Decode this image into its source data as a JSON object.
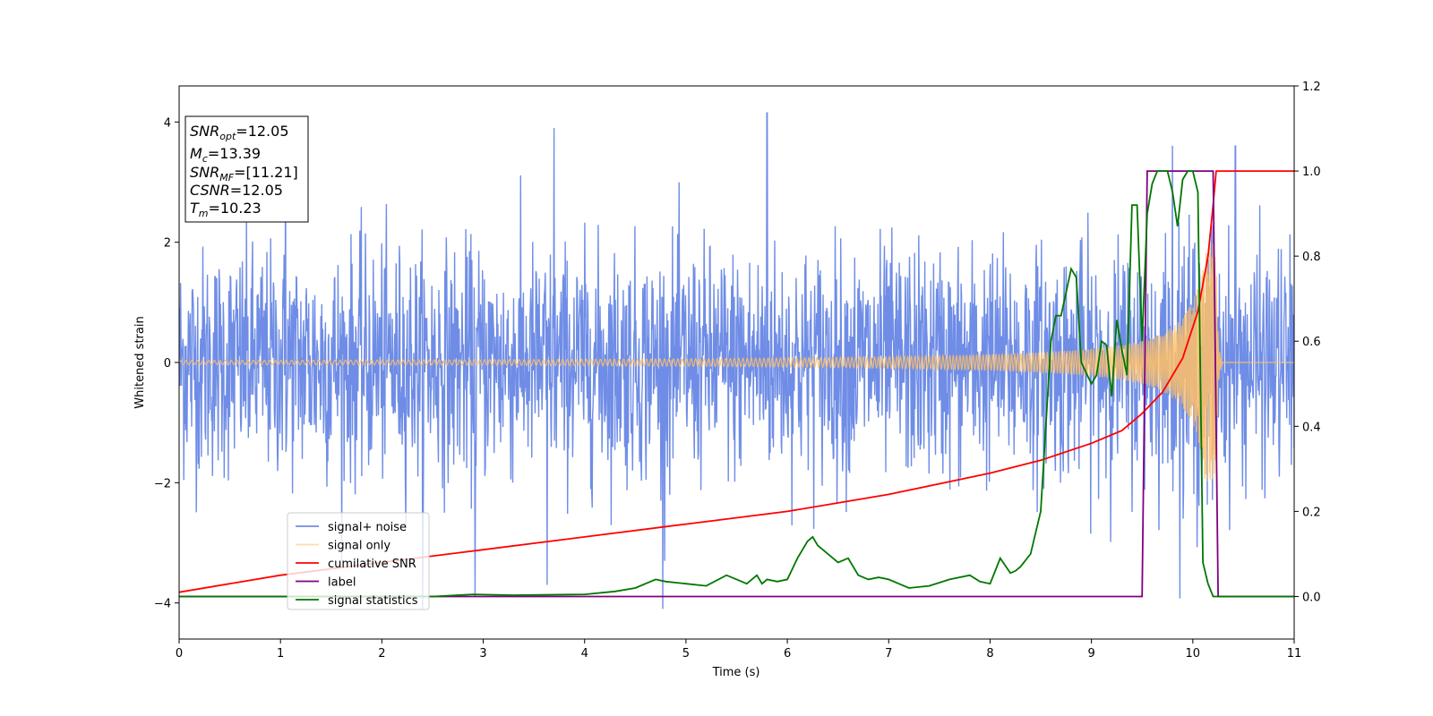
{
  "chart_data": {
    "type": "line",
    "title": "",
    "xlabel": "Time (s)",
    "ylabel": "Whitened strain",
    "xlim": [
      0,
      11
    ],
    "ylim": [
      -4.6,
      4.6
    ],
    "ylim_right": [
      -0.1,
      1.2
    ],
    "grid": false,
    "legend_position": "lower-left",
    "x_ticks": [
      "0",
      "1",
      "2",
      "3",
      "4",
      "5",
      "6",
      "7",
      "8",
      "9",
      "10",
      "11"
    ],
    "y_ticks": [
      "−4",
      "−2",
      "0",
      "2",
      "4"
    ],
    "y_ticks_right": [
      "0.0",
      "0.2",
      "0.4",
      "0.6",
      "0.8",
      "1.0",
      "1.2"
    ],
    "info_box": {
      "snr_opt": {
        "sym": "SNR",
        "sub": "opt",
        "value": "=12.05"
      },
      "mc": {
        "sym": "M",
        "sub": "c",
        "value": "=13.39"
      },
      "snr_mf": {
        "sym": "SNR",
        "sub": "MF",
        "value": "=[11.21]"
      },
      "csnr": {
        "sym": "CSNR",
        "sub": "",
        "value": "=12.05"
      },
      "tm": {
        "sym": "T",
        "sub": "m",
        "value": "=10.23"
      }
    },
    "series": [
      {
        "name": "signal+ noise",
        "axis": "left",
        "color": "#6f8de6",
        "kind": "noise",
        "std": 1.0,
        "extremes": [
          [
            1.05,
            3.9
          ],
          [
            3.7,
            3.9
          ],
          [
            5.8,
            4.15
          ],
          [
            9.8,
            3.5
          ],
          [
            10.42,
            3.6
          ],
          [
            2.4,
            -4.1
          ],
          [
            4.77,
            -4.1
          ],
          [
            2.92,
            -3.9
          ],
          [
            3.63,
            -3.7
          ]
        ]
      },
      {
        "name": "signal only",
        "axis": "left",
        "color": "#ffbf66",
        "kind": "chirp",
        "t_merger": 10.23
      },
      {
        "name": "cumilative SNR",
        "axis": "right",
        "color": "#ff0000",
        "x": [
          0,
          1,
          2,
          3,
          4,
          5,
          6,
          7,
          8,
          8.5,
          9,
          9.3,
          9.5,
          9.7,
          9.9,
          10.05,
          10.15,
          10.2,
          10.23,
          10.3,
          11
        ],
        "y": [
          0.01,
          0.05,
          0.08,
          0.11,
          0.14,
          0.17,
          0.2,
          0.24,
          0.29,
          0.32,
          0.36,
          0.39,
          0.43,
          0.48,
          0.56,
          0.67,
          0.8,
          0.92,
          1.0,
          1.0,
          1.0
        ]
      },
      {
        "name": "label",
        "axis": "right",
        "color": "#800080",
        "x": [
          0,
          9.5,
          9.55,
          10.2,
          10.25,
          11
        ],
        "y": [
          0,
          0,
          1.0,
          1.0,
          0,
          0
        ]
      },
      {
        "name": "signal statistics",
        "axis": "right",
        "color": "#007700",
        "x": [
          0,
          1,
          2,
          2.5,
          2.9,
          3.3,
          4,
          4.3,
          4.5,
          4.7,
          4.8,
          5.0,
          5.2,
          5.4,
          5.5,
          5.6,
          5.7,
          5.75,
          5.8,
          5.9,
          6.0,
          6.1,
          6.2,
          6.25,
          6.3,
          6.4,
          6.5,
          6.6,
          6.7,
          6.8,
          6.9,
          7.0,
          7.1,
          7.2,
          7.4,
          7.6,
          7.8,
          7.9,
          8.0,
          8.1,
          8.2,
          8.25,
          8.3,
          8.4,
          8.5,
          8.55,
          8.6,
          8.65,
          8.7,
          8.8,
          8.85,
          8.9,
          9.0,
          9.05,
          9.1,
          9.15,
          9.2,
          9.25,
          9.3,
          9.35,
          9.4,
          9.45,
          9.5,
          9.55,
          9.6,
          9.65,
          9.7,
          9.75,
          9.8,
          9.85,
          9.9,
          9.95,
          10.0,
          10.05,
          10.1,
          10.15,
          10.2,
          10.25,
          10.3,
          10.4,
          11
        ],
        "y": [
          0,
          0,
          0,
          0,
          0.005,
          0.003,
          0.005,
          0.012,
          0.02,
          0.04,
          0.035,
          0.03,
          0.025,
          0.05,
          0.04,
          0.03,
          0.05,
          0.03,
          0.04,
          0.035,
          0.04,
          0.09,
          0.13,
          0.14,
          0.12,
          0.1,
          0.08,
          0.09,
          0.05,
          0.04,
          0.045,
          0.04,
          0.03,
          0.02,
          0.025,
          0.04,
          0.05,
          0.035,
          0.03,
          0.09,
          0.055,
          0.06,
          0.07,
          0.1,
          0.2,
          0.4,
          0.6,
          0.66,
          0.66,
          0.77,
          0.75,
          0.55,
          0.5,
          0.52,
          0.6,
          0.59,
          0.47,
          0.65,
          0.58,
          0.52,
          0.92,
          0.92,
          0.6,
          0.9,
          0.97,
          1.0,
          1.0,
          1.0,
          0.95,
          0.87,
          0.98,
          1.0,
          1.0,
          0.95,
          0.08,
          0.03,
          0,
          0,
          0,
          0,
          0
        ]
      }
    ]
  }
}
